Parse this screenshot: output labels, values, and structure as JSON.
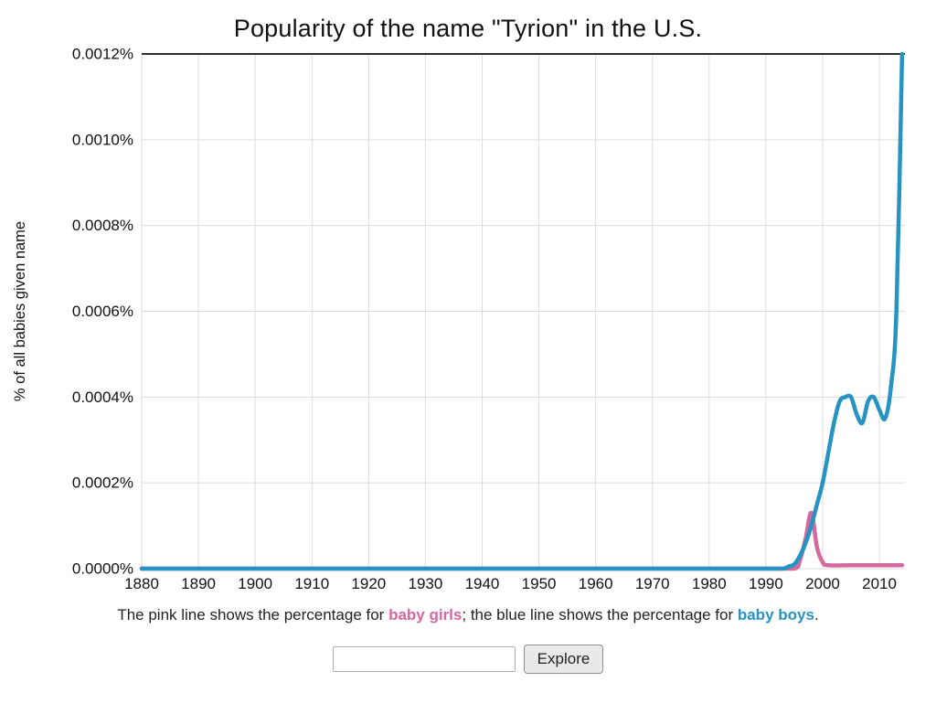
{
  "page": {
    "title": "Popularity of the name \"Tyrion\" in the U.S."
  },
  "caption": {
    "prefix": "The pink line shows the percentage for ",
    "girls_label": "baby girls",
    "mid": "; the blue line shows the percentage for ",
    "boys_label": "baby boys",
    "suffix": "."
  },
  "form": {
    "input_value": "",
    "input_placeholder": "",
    "explore_label": "Explore"
  },
  "chart_data": {
    "type": "line",
    "title": "Popularity of the name \"Tyrion\" in the U.S.",
    "xlabel": "",
    "ylabel": "% of all babies given name",
    "xlim": [
      1880,
      2014.5
    ],
    "ylim": [
      0,
      0.0012
    ],
    "grid": true,
    "legend_position": "none (described in caption below chart)",
    "x_ticks": [
      1880,
      1890,
      1900,
      1910,
      1920,
      1930,
      1940,
      1950,
      1960,
      1970,
      1980,
      1990,
      2000,
      2010
    ],
    "y_ticks": [
      0,
      0.0002,
      0.0004,
      0.0006,
      0.0008,
      0.001,
      0.0012
    ],
    "y_tick_labels": [
      "0.0000%",
      "0.0002%",
      "0.0004%",
      "0.0006%",
      "0.0008%",
      "0.0010%",
      "0.0012%"
    ],
    "series": [
      {
        "name": "baby girls",
        "color": "#d4699f",
        "points": [
          [
            1880,
            0
          ],
          [
            1900,
            0
          ],
          [
            1920,
            0
          ],
          [
            1940,
            0
          ],
          [
            1960,
            0
          ],
          [
            1980,
            0
          ],
          [
            1990,
            0
          ],
          [
            1995,
            0
          ],
          [
            1996,
            2e-05
          ],
          [
            1997,
            7e-05
          ],
          [
            1998,
            0.00013
          ],
          [
            1999,
            5e-05
          ],
          [
            2000,
            1.5e-05
          ],
          [
            2001,
            8e-06
          ],
          [
            2005,
            8e-06
          ],
          [
            2010,
            8e-06
          ],
          [
            2014,
            8e-06
          ]
        ]
      },
      {
        "name": "baby boys",
        "color": "#2793c2",
        "points": [
          [
            1880,
            0
          ],
          [
            1900,
            0
          ],
          [
            1920,
            0
          ],
          [
            1940,
            0
          ],
          [
            1960,
            0
          ],
          [
            1980,
            0
          ],
          [
            1990,
            0
          ],
          [
            1993,
            0
          ],
          [
            1994,
            5e-06
          ],
          [
            1995,
            1e-05
          ],
          [
            1996,
            3e-05
          ],
          [
            1997,
            6e-05
          ],
          [
            1998,
            0.0001
          ],
          [
            1999,
            0.00015
          ],
          [
            2000,
            0.0002
          ],
          [
            2001,
            0.00027
          ],
          [
            2002,
            0.00034
          ],
          [
            2003,
            0.00039
          ],
          [
            2004,
            0.0004
          ],
          [
            2005,
            0.0004
          ],
          [
            2006,
            0.00036
          ],
          [
            2007,
            0.00034
          ],
          [
            2008,
            0.00039
          ],
          [
            2009,
            0.0004
          ],
          [
            2010,
            0.00037
          ],
          [
            2011,
            0.00035
          ],
          [
            2012,
            0.00042
          ],
          [
            2013,
            0.0006
          ],
          [
            2014,
            0.0012
          ]
        ]
      }
    ]
  }
}
